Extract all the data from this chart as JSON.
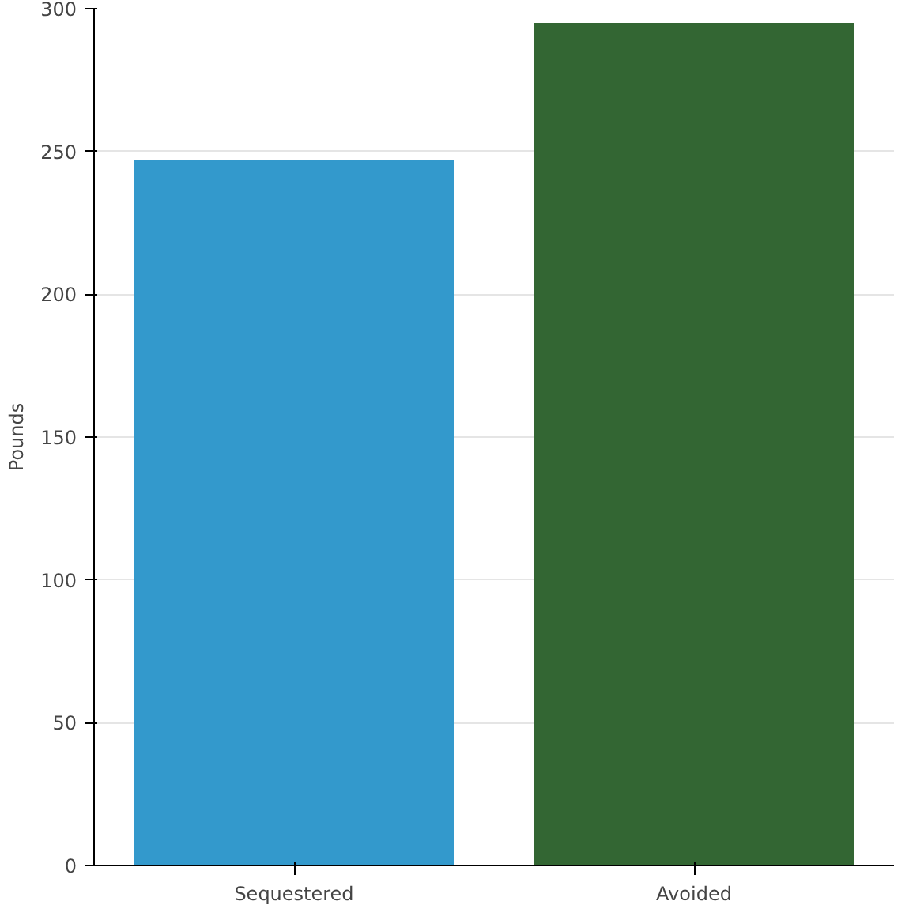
{
  "chart_data": {
    "type": "bar",
    "ylabel": "Pounds",
    "categories": [
      "Sequestered",
      "Avoided"
    ],
    "values": [
      247,
      295
    ],
    "colors": [
      "#3399cc",
      "#336633"
    ],
    "ylim": [
      0,
      300
    ],
    "yticks": [
      0,
      50,
      100,
      150,
      200,
      250,
      300
    ],
    "grid": "y"
  }
}
